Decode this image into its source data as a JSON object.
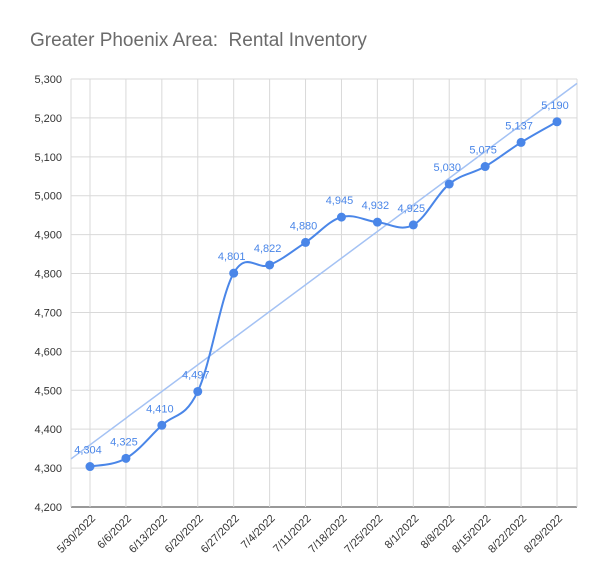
{
  "chart_data": {
    "type": "line",
    "title": "Greater Phoenix Area:  Rental Inventory",
    "xlabel": "",
    "ylabel": "",
    "categories": [
      "5/30/2022",
      "6/6/2022",
      "6/13/2022",
      "6/20/2022",
      "6/27/2022",
      "7/4/2022",
      "7/11/2022",
      "7/18/2022",
      "7/25/2022",
      "8/1/2022",
      "8/8/2022",
      "8/15/2022",
      "8/22/2022",
      "8/29/2022"
    ],
    "series": [
      {
        "values": [
          4304,
          4325,
          4410,
          4497,
          4801,
          4822,
          4880,
          4945,
          4932,
          4925,
          5030,
          5075,
          5137,
          5190
        ],
        "data_labels": [
          "4,304",
          "4,325",
          "4,410",
          "4,497",
          "4,801",
          "4,822",
          "4,880",
          "4,945",
          "4,932",
          "4,925",
          "5,030",
          "5,075",
          "5,137",
          "5,190"
        ],
        "color": "#4a86e8",
        "smooth": true,
        "markers": true
      }
    ],
    "trendline": {
      "type": "linear",
      "color": "#a4c2f4"
    },
    "ylim": [
      4200,
      5300
    ],
    "yticks": [
      4200,
      4300,
      4400,
      4500,
      4600,
      4700,
      4800,
      4900,
      5000,
      5100,
      5200,
      5300
    ],
    "ytick_labels": [
      "4,200",
      "4,300",
      "4,400",
      "4,500",
      "4,600",
      "4,700",
      "4,800",
      "4,900",
      "5,000",
      "5,100",
      "5,200",
      "5,300"
    ],
    "grid": true,
    "legend": "none"
  }
}
